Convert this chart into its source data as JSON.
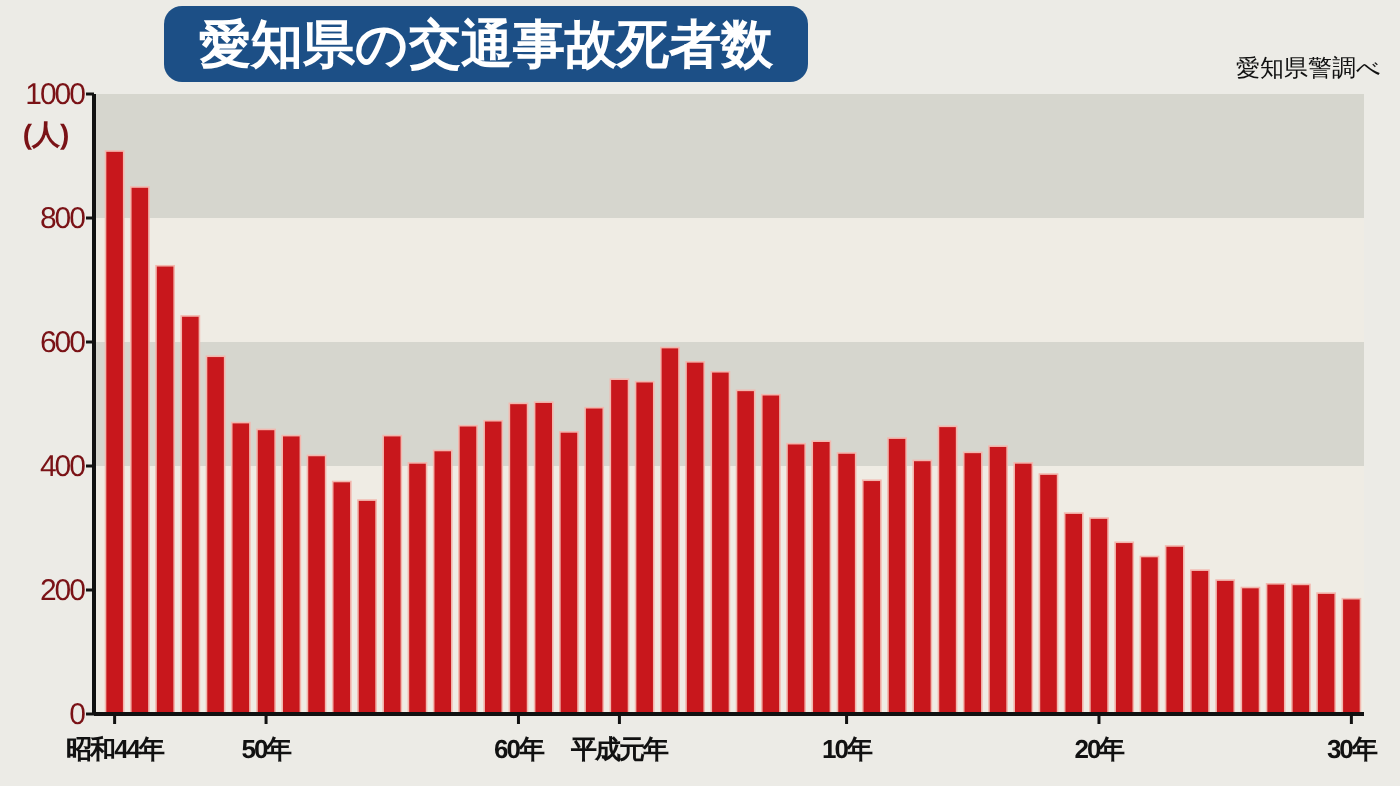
{
  "chart_data": {
    "type": "bar",
    "title": "愛知県の交通事故死者数",
    "ylabel": "(人)",
    "annotations": [
      "愛知県警調べ"
    ],
    "categories": [
      "昭和44年",
      null,
      null,
      null,
      null,
      null,
      "50年",
      null,
      null,
      null,
      null,
      null,
      null,
      null,
      null,
      null,
      "60年",
      null,
      null,
      null,
      "平成元年",
      null,
      null,
      null,
      null,
      null,
      null,
      null,
      null,
      "10年",
      null,
      null,
      null,
      null,
      null,
      null,
      null,
      null,
      null,
      "20年",
      null,
      null,
      null,
      null,
      null,
      null,
      null,
      null,
      null,
      "30年"
    ],
    "values": [
      908,
      850,
      723,
      642,
      577,
      470,
      459,
      449,
      417,
      375,
      345,
      449,
      405,
      425,
      465,
      473,
      501,
      503,
      455,
      494,
      540,
      536,
      591,
      568,
      552,
      522,
      515,
      436,
      440,
      421,
      377,
      445,
      409,
      464,
      422,
      432,
      405,
      387,
      324,
      316,
      277,
      254,
      271,
      232,
      216,
      204,
      210,
      209,
      195,
      186
    ],
    "color": "#c8171c",
    "ylim": [
      0,
      1000
    ],
    "yticks": [
      0,
      200,
      400,
      600,
      800,
      1000
    ],
    "bands": [
      {
        "axis": "y",
        "from": 800,
        "to": 1000,
        "color": "#d6d6ce"
      },
      {
        "axis": "y",
        "from": 400,
        "to": 600,
        "color": "#d6d6ce"
      }
    ]
  }
}
